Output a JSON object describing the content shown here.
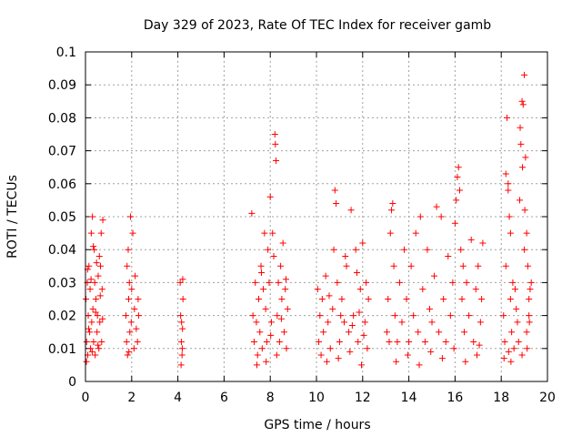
{
  "chart_data": {
    "type": "scatter",
    "title": "Day 329 of 2023, Rate Of TEC Index for receiver gamb",
    "xlabel": "GPS time / hours",
    "ylabel": "ROTI / TECUs",
    "xlim": [
      0,
      20
    ],
    "ylim": [
      0,
      0.1
    ],
    "x_ticks": [
      "0",
      "2",
      "4",
      "6",
      "8",
      "10",
      "12",
      "14",
      "16",
      "18",
      "20"
    ],
    "y_ticks": [
      "0",
      "0.01",
      "0.02",
      "0.03",
      "0.04",
      "0.05",
      "0.06",
      "0.07",
      "0.08",
      "0.09",
      "0.1"
    ],
    "grid": true,
    "marker": "+",
    "series_color": "#ff0000",
    "series": [
      {
        "name": "ROTI",
        "points": [
          [
            0.02,
            0.025
          ],
          [
            0.05,
            0.012
          ],
          [
            0.08,
            0.03
          ],
          [
            0.1,
            0.008
          ],
          [
            0.12,
            0.02
          ],
          [
            0.15,
            0.035
          ],
          [
            0.18,
            0.015
          ],
          [
            0.2,
            0.028
          ],
          [
            0.22,
            0.01
          ],
          [
            0.25,
            0.045
          ],
          [
            0.27,
            0.018
          ],
          [
            0.3,
            0.05
          ],
          [
            0.32,
            0.022
          ],
          [
            0.35,
            0.012
          ],
          [
            0.38,
            0.04
          ],
          [
            0.4,
            0.03
          ],
          [
            0.42,
            0.008
          ],
          [
            0.45,
            0.025
          ],
          [
            0.48,
            0.036
          ],
          [
            0.5,
            0.015
          ],
          [
            0.52,
            0.02
          ],
          [
            0.55,
            0.032
          ],
          [
            0.58,
            0.01
          ],
          [
            0.6,
            0.038
          ],
          [
            0.62,
            0.018
          ],
          [
            0.65,
            0.035
          ],
          [
            0.68,
            0.045
          ],
          [
            0.7,
            0.012
          ],
          [
            0.72,
            0.028
          ],
          [
            0.75,
            0.049
          ],
          [
            0.04,
            0.006
          ],
          [
            0.14,
            0.016
          ],
          [
            0.24,
            0.031
          ],
          [
            0.34,
            0.041
          ],
          [
            0.44,
            0.021
          ],
          [
            0.54,
            0.011
          ],
          [
            0.64,
            0.026
          ],
          [
            0.74,
            0.019
          ],
          [
            0.09,
            0.034
          ],
          [
            0.29,
            0.009
          ],
          [
            1.75,
            0.02
          ],
          [
            1.78,
            0.012
          ],
          [
            1.8,
            0.035
          ],
          [
            1.82,
            0.008
          ],
          [
            1.85,
            0.04
          ],
          [
            1.87,
            0.025
          ],
          [
            1.9,
            0.03
          ],
          [
            1.92,
            0.015
          ],
          [
            1.95,
            0.05
          ],
          [
            1.98,
            0.018
          ],
          [
            2.0,
            0.028
          ],
          [
            2.05,
            0.045
          ],
          [
            2.1,
            0.01
          ],
          [
            2.12,
            0.022
          ],
          [
            2.15,
            0.032
          ],
          [
            2.2,
            0.016
          ],
          [
            2.25,
            0.012
          ],
          [
            2.28,
            0.025
          ],
          [
            2.3,
            0.02
          ],
          [
            1.88,
            0.009
          ],
          [
            4.1,
            0.03
          ],
          [
            4.12,
            0.02
          ],
          [
            4.15,
            0.012
          ],
          [
            4.18,
            0.008
          ],
          [
            4.2,
            0.016
          ],
          [
            4.22,
            0.025
          ],
          [
            4.14,
            0.005
          ],
          [
            4.16,
            0.018
          ],
          [
            4.19,
            0.01
          ],
          [
            4.21,
            0.031
          ],
          [
            7.2,
            0.051
          ],
          [
            7.25,
            0.02
          ],
          [
            7.3,
            0.012
          ],
          [
            7.35,
            0.03
          ],
          [
            7.4,
            0.018
          ],
          [
            7.45,
            0.008
          ],
          [
            7.5,
            0.025
          ],
          [
            7.55,
            0.015
          ],
          [
            7.6,
            0.035
          ],
          [
            7.65,
            0.01
          ],
          [
            7.7,
            0.028
          ],
          [
            7.75,
            0.045
          ],
          [
            7.8,
            0.022
          ],
          [
            7.85,
            0.012
          ],
          [
            7.9,
            0.04
          ],
          [
            7.95,
            0.03
          ],
          [
            8.0,
            0.056
          ],
          [
            8.05,
            0.018
          ],
          [
            8.1,
            0.045
          ],
          [
            8.15,
            0.038
          ],
          [
            8.2,
            0.075
          ],
          [
            8.22,
            0.072
          ],
          [
            8.25,
            0.067
          ],
          [
            8.3,
            0.02
          ],
          [
            8.35,
            0.03
          ],
          [
            8.4,
            0.012
          ],
          [
            8.45,
            0.035
          ],
          [
            8.5,
            0.025
          ],
          [
            8.55,
            0.042
          ],
          [
            8.6,
            0.015
          ],
          [
            8.65,
            0.028
          ],
          [
            8.7,
            0.01
          ],
          [
            8.75,
            0.022
          ],
          [
            7.42,
            0.005
          ],
          [
            7.62,
            0.033
          ],
          [
            7.82,
            0.006
          ],
          [
            8.02,
            0.014
          ],
          [
            8.28,
            0.008
          ],
          [
            8.48,
            0.019
          ],
          [
            8.68,
            0.031
          ],
          [
            10.05,
            0.028
          ],
          [
            10.1,
            0.012
          ],
          [
            10.15,
            0.02
          ],
          [
            10.2,
            0.008
          ],
          [
            10.25,
            0.025
          ],
          [
            10.3,
            0.015
          ],
          [
            10.4,
            0.032
          ],
          [
            10.5,
            0.018
          ],
          [
            10.6,
            0.01
          ],
          [
            10.7,
            0.022
          ],
          [
            10.8,
            0.058
          ],
          [
            10.85,
            0.054
          ],
          [
            10.9,
            0.03
          ],
          [
            11.0,
            0.012
          ],
          [
            11.1,
            0.025
          ],
          [
            11.2,
            0.018
          ],
          [
            11.3,
            0.035
          ],
          [
            11.4,
            0.015
          ],
          [
            11.5,
            0.052
          ],
          [
            11.6,
            0.02
          ],
          [
            11.7,
            0.04
          ],
          [
            11.8,
            0.012
          ],
          [
            11.9,
            0.028
          ],
          [
            12.0,
            0.042
          ],
          [
            12.1,
            0.018
          ],
          [
            12.2,
            0.01
          ],
          [
            12.25,
            0.025
          ],
          [
            10.45,
            0.006
          ],
          [
            10.95,
            0.007
          ],
          [
            11.45,
            0.009
          ],
          [
            11.95,
            0.005
          ],
          [
            10.75,
            0.04
          ],
          [
            11.25,
            0.038
          ],
          [
            11.75,
            0.033
          ],
          [
            12.15,
            0.03
          ],
          [
            10.55,
            0.026
          ],
          [
            11.05,
            0.02
          ],
          [
            11.55,
            0.017
          ],
          [
            11.85,
            0.021
          ],
          [
            12.05,
            0.014
          ],
          [
            13.05,
            0.015
          ],
          [
            13.1,
            0.025
          ],
          [
            13.15,
            0.012
          ],
          [
            13.2,
            0.045
          ],
          [
            13.25,
            0.052
          ],
          [
            13.3,
            0.054
          ],
          [
            13.35,
            0.035
          ],
          [
            13.4,
            0.02
          ],
          [
            13.5,
            0.012
          ],
          [
            13.6,
            0.03
          ],
          [
            13.7,
            0.018
          ],
          [
            13.8,
            0.04
          ],
          [
            13.9,
            0.025
          ],
          [
            14.0,
            0.012
          ],
          [
            14.1,
            0.035
          ],
          [
            14.2,
            0.02
          ],
          [
            14.3,
            0.045
          ],
          [
            14.4,
            0.015
          ],
          [
            14.5,
            0.05
          ],
          [
            14.6,
            0.028
          ],
          [
            14.7,
            0.012
          ],
          [
            14.8,
            0.04
          ],
          [
            14.9,
            0.022
          ],
          [
            15.0,
            0.018
          ],
          [
            15.1,
            0.032
          ],
          [
            15.2,
            0.053
          ],
          [
            15.3,
            0.015
          ],
          [
            15.4,
            0.05
          ],
          [
            15.5,
            0.025
          ],
          [
            15.6,
            0.012
          ],
          [
            15.7,
            0.038
          ],
          [
            15.8,
            0.02
          ],
          [
            15.9,
            0.03
          ],
          [
            16.0,
            0.048
          ],
          [
            16.05,
            0.055
          ],
          [
            16.1,
            0.062
          ],
          [
            16.15,
            0.065
          ],
          [
            16.2,
            0.058
          ],
          [
            16.25,
            0.04
          ],
          [
            16.3,
            0.025
          ],
          [
            16.4,
            0.015
          ],
          [
            16.5,
            0.03
          ],
          [
            16.6,
            0.02
          ],
          [
            16.7,
            0.043
          ],
          [
            16.8,
            0.012
          ],
          [
            16.9,
            0.028
          ],
          [
            17.0,
            0.035
          ],
          [
            17.1,
            0.018
          ],
          [
            17.15,
            0.025
          ],
          [
            17.2,
            0.042
          ],
          [
            13.45,
            0.006
          ],
          [
            13.95,
            0.008
          ],
          [
            14.45,
            0.005
          ],
          [
            14.95,
            0.009
          ],
          [
            15.45,
            0.007
          ],
          [
            15.95,
            0.01
          ],
          [
            16.45,
            0.006
          ],
          [
            16.95,
            0.008
          ],
          [
            17.05,
            0.011
          ],
          [
            16.35,
            0.035
          ],
          [
            18.1,
            0.02
          ],
          [
            18.15,
            0.012
          ],
          [
            18.2,
            0.035
          ],
          [
            18.25,
            0.08
          ],
          [
            18.3,
            0.06
          ],
          [
            18.35,
            0.05
          ],
          [
            18.4,
            0.025
          ],
          [
            18.45,
            0.015
          ],
          [
            18.5,
            0.03
          ],
          [
            18.55,
            0.01
          ],
          [
            18.2,
            0.063
          ],
          [
            18.3,
            0.058
          ],
          [
            18.4,
            0.045
          ],
          [
            18.6,
            0.028
          ],
          [
            18.7,
            0.018
          ],
          [
            18.8,
            0.055
          ],
          [
            18.85,
            0.072
          ],
          [
            18.9,
            0.085
          ],
          [
            18.95,
            0.084
          ],
          [
            19.0,
            0.093
          ],
          [
            19.05,
            0.068
          ],
          [
            19.1,
            0.045
          ],
          [
            19.15,
            0.035
          ],
          [
            19.2,
            0.02
          ],
          [
            19.25,
            0.028
          ],
          [
            18.75,
            0.012
          ],
          [
            18.9,
            0.008
          ],
          [
            19.0,
            0.04
          ],
          [
            19.1,
            0.015
          ],
          [
            19.2,
            0.025
          ],
          [
            19.3,
            0.03
          ],
          [
            18.65,
            0.022
          ],
          [
            18.82,
            0.077
          ],
          [
            18.92,
            0.065
          ],
          [
            19.02,
            0.052
          ],
          [
            19.12,
            0.01
          ],
          [
            18.12,
            0.007
          ],
          [
            18.32,
            0.009
          ],
          [
            18.42,
            0.006
          ],
          [
            19.22,
            0.018
          ]
        ]
      }
    ]
  }
}
